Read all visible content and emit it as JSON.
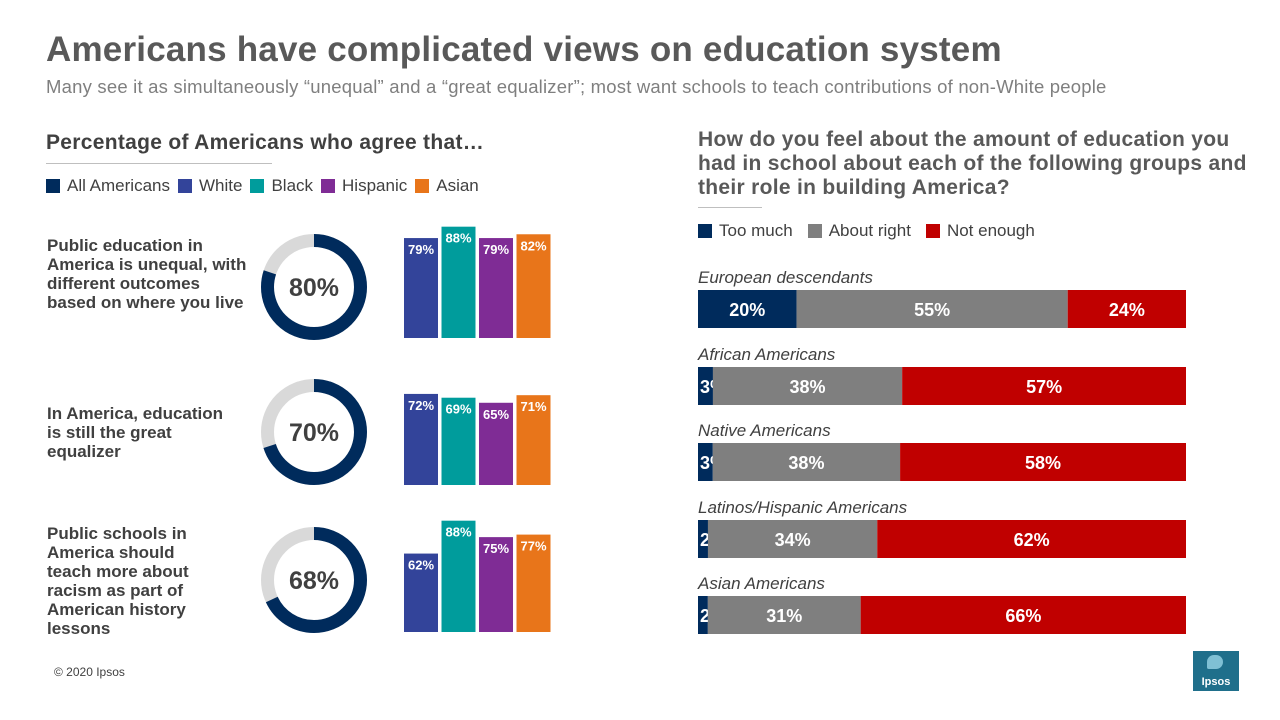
{
  "header": {
    "title": "Americans have complicated views on education system",
    "subtitle": "Many see it as simultaneously “unequal” and a “great equalizer”; most want schools to teach contributions of non-White people"
  },
  "left": {
    "heading": "Percentage of Americans who agree that…",
    "legend": [
      "All Americans",
      "White",
      "Black",
      "Hispanic",
      "Asian"
    ]
  },
  "right": {
    "heading": "How do you feel about the amount of education you had in school about each of the following groups and their role in building America?",
    "legend": [
      "Too much",
      "About right",
      "Not enough"
    ]
  },
  "colors": {
    "all_americans": "#002b5c",
    "white": "#33449a",
    "black": "#009c9c",
    "hispanic": "#7f2c95",
    "asian": "#e8751a",
    "too_much": "#002b5c",
    "about_right": "#7f7f7f",
    "not_enough": "#c00000",
    "donut_track": "#d9d9d9"
  },
  "chart_data": [
    {
      "type": "bar",
      "title": "Percentage of Americans who agree that…",
      "categories": [
        "Public education in America is unequal, with different outcomes based on where you live",
        "In America, education is still the great equalizer",
        "Public schools in America should teach more about racism as part of American history lessons"
      ],
      "overall": [
        80,
        70,
        68
      ],
      "overall_label": "All Americans",
      "series": [
        {
          "name": "White",
          "values": [
            79,
            72,
            62
          ]
        },
        {
          "name": "Black",
          "values": [
            88,
            69,
            88
          ]
        },
        {
          "name": "Hispanic",
          "values": [
            79,
            65,
            75
          ]
        },
        {
          "name": "Asian",
          "values": [
            82,
            71,
            77
          ]
        }
      ],
      "unit": "%"
    },
    {
      "type": "bar",
      "stacked": true,
      "orientation": "horizontal",
      "title": "How do you feel about the amount of education you had in school about each of the following groups and their role in building America?",
      "categories": [
        "European descendants",
        "African Americans",
        "Native Americans",
        "Latinos/Hispanic Americans",
        "Asian Americans"
      ],
      "series": [
        {
          "name": "Too much",
          "values": [
            20,
            3,
            3,
            2,
            2
          ]
        },
        {
          "name": "About right",
          "values": [
            55,
            38,
            38,
            34,
            31
          ]
        },
        {
          "name": "Not enough",
          "values": [
            24,
            57,
            58,
            62,
            66
          ]
        }
      ],
      "unit": "%"
    }
  ],
  "footer": {
    "copyright": "© 2020 Ipsos"
  },
  "logo": {
    "text": "Ipsos"
  }
}
